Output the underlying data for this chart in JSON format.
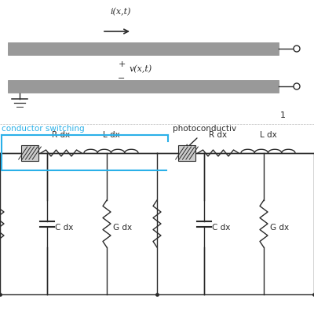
{
  "bg_color": "#ffffff",
  "line_color": "#2a2a2a",
  "gray_fill": "#999999",
  "blue_color": "#2ab0e8",
  "label_i": "i(x,t)",
  "label_v": "v(x,t)",
  "label_1": "1",
  "label_conductor": "conductor switching",
  "label_photo": "photoconductiv",
  "labels_top": [
    "R dx",
    "L dx",
    "R dx",
    "L dx"
  ],
  "labels_bot": [
    "C dx",
    "G dx",
    "C dx",
    "G dx"
  ],
  "figsize": [
    4.0,
    4.0
  ],
  "dpi": 100
}
